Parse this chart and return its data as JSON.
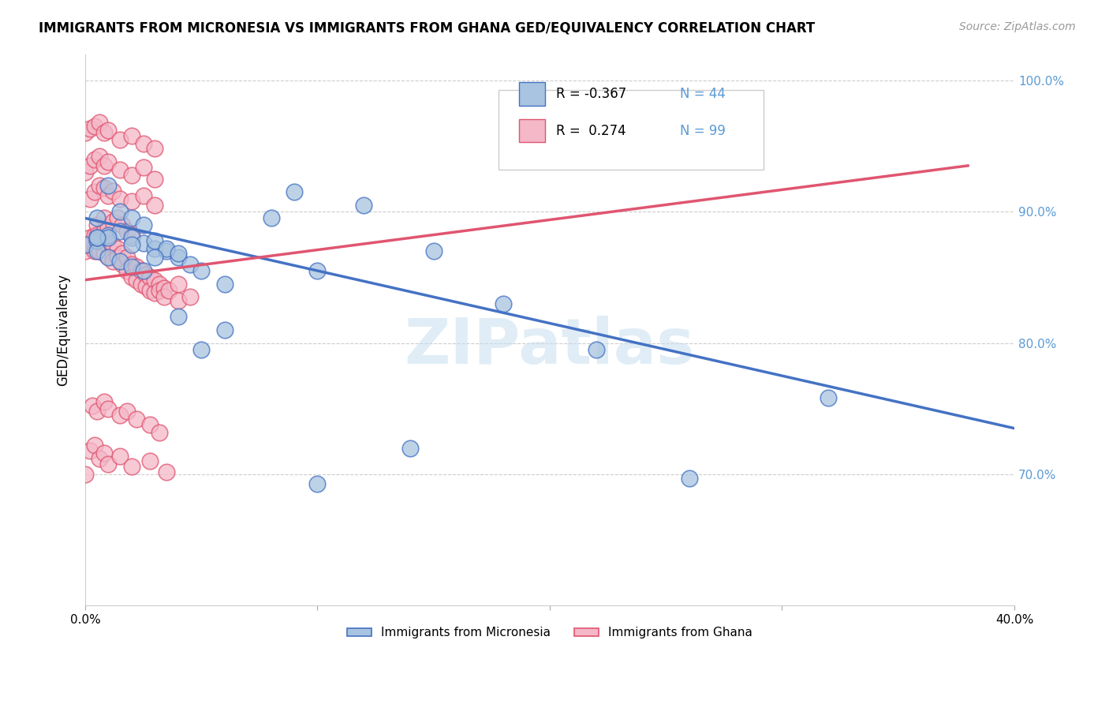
{
  "title": "IMMIGRANTS FROM MICRONESIA VS IMMIGRANTS FROM GHANA GED/EQUIVALENCY CORRELATION CHART",
  "source": "Source: ZipAtlas.com",
  "ylabel": "GED/Equivalency",
  "x_min": 0.0,
  "x_max": 0.4,
  "y_min": 0.6,
  "y_max": 1.02,
  "y_ticks": [
    0.7,
    0.8,
    0.9,
    1.0
  ],
  "y_tick_labels": [
    "70.0%",
    "80.0%",
    "90.0%",
    "100.0%"
  ],
  "micronesia_R": "-0.367",
  "micronesia_N": "44",
  "ghana_R": "0.274",
  "ghana_N": "99",
  "color_micronesia": "#a8c4e0",
  "color_ghana": "#f4b8c8",
  "line_color_micronesia": "#4472c4",
  "line_color_ghana": "#e05570",
  "micronesia_points_x": [
    0.0,
    0.005,
    0.01,
    0.015,
    0.02,
    0.025,
    0.03,
    0.035,
    0.04,
    0.045,
    0.005,
    0.01,
    0.015,
    0.02,
    0.025,
    0.03,
    0.035,
    0.04,
    0.05,
    0.06,
    0.005,
    0.01,
    0.015,
    0.02,
    0.025,
    0.08,
    0.09,
    0.12,
    0.15,
    0.18,
    0.005,
    0.01,
    0.02,
    0.03,
    0.04,
    0.05,
    0.06,
    0.1,
    0.14,
    0.22,
    0.005,
    0.1,
    0.26,
    0.32
  ],
  "micronesia_points_y": [
    0.875,
    0.878,
    0.882,
    0.885,
    0.88,
    0.876,
    0.872,
    0.87,
    0.865,
    0.86,
    0.895,
    0.92,
    0.9,
    0.895,
    0.89,
    0.878,
    0.872,
    0.868,
    0.855,
    0.845,
    0.87,
    0.865,
    0.862,
    0.858,
    0.855,
    0.895,
    0.915,
    0.905,
    0.87,
    0.83,
    0.88,
    0.88,
    0.875,
    0.865,
    0.82,
    0.795,
    0.81,
    0.855,
    0.72,
    0.795,
    0.88,
    0.693,
    0.697,
    0.758
  ],
  "ghana_points_x": [
    0.0,
    0.0,
    0.002,
    0.002,
    0.004,
    0.004,
    0.006,
    0.006,
    0.008,
    0.008,
    0.01,
    0.01,
    0.012,
    0.012,
    0.014,
    0.014,
    0.016,
    0.016,
    0.018,
    0.018,
    0.02,
    0.02,
    0.022,
    0.022,
    0.024,
    0.024,
    0.026,
    0.026,
    0.028,
    0.028,
    0.03,
    0.03,
    0.032,
    0.032,
    0.034,
    0.034,
    0.036,
    0.04,
    0.04,
    0.045,
    0.005,
    0.005,
    0.008,
    0.008,
    0.01,
    0.012,
    0.014,
    0.016,
    0.018,
    0.02,
    0.002,
    0.004,
    0.006,
    0.008,
    0.01,
    0.012,
    0.015,
    0.02,
    0.025,
    0.03,
    0.0,
    0.002,
    0.004,
    0.006,
    0.008,
    0.01,
    0.015,
    0.02,
    0.025,
    0.03,
    0.0,
    0.002,
    0.004,
    0.006,
    0.008,
    0.01,
    0.015,
    0.02,
    0.025,
    0.03,
    0.0,
    0.002,
    0.004,
    0.006,
    0.008,
    0.01,
    0.015,
    0.02,
    0.028,
    0.035,
    0.003,
    0.005,
    0.008,
    0.01,
    0.015,
    0.018,
    0.022,
    0.028,
    0.032
  ],
  "ghana_points_y": [
    0.875,
    0.87,
    0.88,
    0.875,
    0.882,
    0.87,
    0.878,
    0.87,
    0.876,
    0.868,
    0.874,
    0.866,
    0.875,
    0.862,
    0.872,
    0.865,
    0.868,
    0.86,
    0.865,
    0.855,
    0.86,
    0.85,
    0.858,
    0.848,
    0.855,
    0.845,
    0.852,
    0.843,
    0.85,
    0.84,
    0.848,
    0.838,
    0.845,
    0.84,
    0.842,
    0.835,
    0.84,
    0.845,
    0.832,
    0.835,
    0.89,
    0.882,
    0.895,
    0.885,
    0.888,
    0.892,
    0.895,
    0.89,
    0.885,
    0.882,
    0.91,
    0.915,
    0.92,
    0.918,
    0.912,
    0.916,
    0.91,
    0.908,
    0.912,
    0.905,
    0.93,
    0.935,
    0.94,
    0.942,
    0.935,
    0.938,
    0.932,
    0.928,
    0.934,
    0.925,
    0.96,
    0.963,
    0.965,
    0.968,
    0.96,
    0.962,
    0.955,
    0.958,
    0.952,
    0.948,
    0.7,
    0.718,
    0.722,
    0.712,
    0.716,
    0.708,
    0.714,
    0.706,
    0.71,
    0.702,
    0.752,
    0.748,
    0.755,
    0.75,
    0.745,
    0.748,
    0.742,
    0.738,
    0.732
  ],
  "mic_line_x": [
    0.0,
    0.4
  ],
  "mic_line_y": [
    0.895,
    0.735
  ],
  "gha_line_x": [
    0.0,
    0.38
  ],
  "gha_line_y": [
    0.848,
    0.935
  ]
}
